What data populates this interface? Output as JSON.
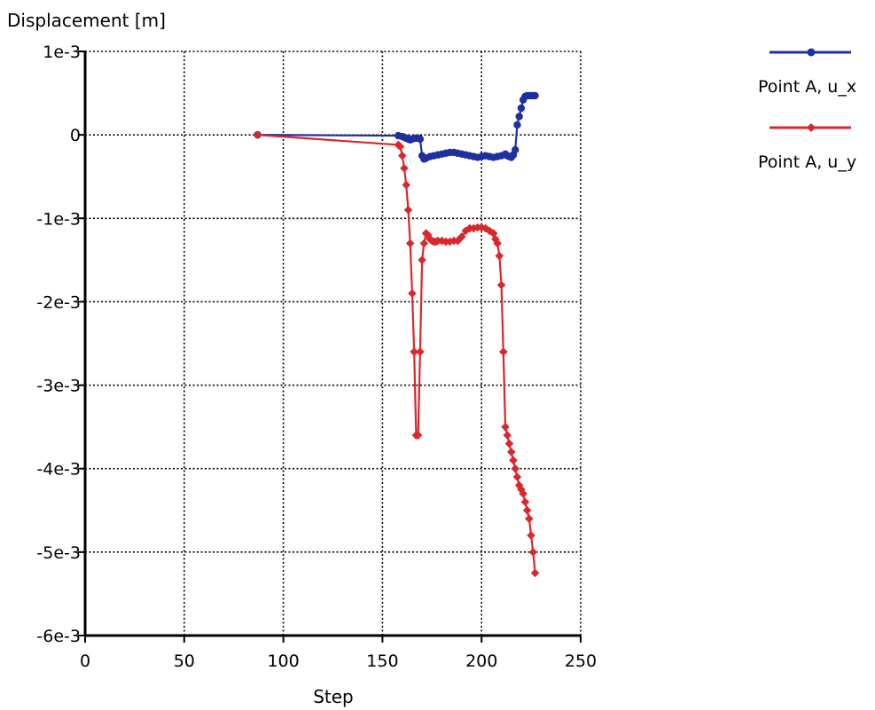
{
  "chart_data": {
    "type": "line",
    "title": "",
    "xlabel": "Step",
    "ylabel": "Displacement [m]",
    "xlim": [
      0,
      250
    ],
    "ylim": [
      -0.006,
      0.001
    ],
    "x_ticks": [
      0,
      50,
      100,
      150,
      200,
      250
    ],
    "x_tick_labels": [
      "0",
      "50",
      "100",
      "150",
      "200",
      "250"
    ],
    "y_ticks": [
      0.001,
      0,
      -0.001,
      -0.002,
      -0.003,
      -0.004,
      -0.005,
      -0.006
    ],
    "y_tick_labels": [
      "1e-3",
      "0",
      "-1e-3",
      "-2e-3",
      "-3e-3",
      "-4e-3",
      "-5e-3",
      "-6e-3"
    ],
    "grid": true,
    "legend_position": "top-right",
    "series": [
      {
        "name": "Point A, u_x",
        "color": "#1f2fa0",
        "marker": "circle",
        "x": [
          87,
          158,
          160,
          161,
          162,
          163,
          164,
          165,
          166,
          167,
          168,
          169,
          170,
          171,
          172,
          174,
          176,
          178,
          180,
          182,
          184,
          186,
          188,
          190,
          192,
          194,
          196,
          198,
          200,
          202,
          204,
          206,
          208,
          210,
          212,
          213,
          214,
          215,
          216,
          217,
          218,
          219,
          220,
          221,
          222,
          223,
          224,
          225,
          226,
          227
        ],
        "y": [
          0.0,
          -1e-05,
          -2e-05,
          -3e-05,
          -4e-05,
          -5e-05,
          -6e-05,
          -5e-05,
          -4e-05,
          -4e-05,
          -4e-05,
          -5e-05,
          -0.00025,
          -0.00029,
          -0.00028,
          -0.00026,
          -0.00025,
          -0.00024,
          -0.00023,
          -0.00022,
          -0.00021,
          -0.00021,
          -0.00022,
          -0.00023,
          -0.00024,
          -0.00025,
          -0.00026,
          -0.00027,
          -0.00026,
          -0.00025,
          -0.00026,
          -0.00027,
          -0.00026,
          -0.00025,
          -0.00023,
          -0.00025,
          -0.00026,
          -0.00027,
          -0.00024,
          -0.00018,
          0.00012,
          0.00022,
          0.00032,
          0.00042,
          0.00046,
          0.00047,
          0.00047,
          0.00047,
          0.00047,
          0.00047
        ]
      },
      {
        "name": "Point A, u_y",
        "color": "#d8282e",
        "marker": "diamond",
        "x": [
          87,
          158,
          159,
          160,
          161,
          162,
          163,
          164,
          165,
          166,
          167,
          168,
          169,
          170,
          171,
          172,
          173,
          174,
          175,
          176,
          177,
          178,
          180,
          182,
          184,
          186,
          188,
          190,
          192,
          194,
          196,
          198,
          200,
          202,
          204,
          206,
          207,
          208,
          209,
          210,
          211,
          212,
          213,
          214,
          215,
          216,
          217,
          218,
          219,
          220,
          221,
          222,
          223,
          224,
          225,
          226,
          227
        ],
        "y": [
          0.0,
          -0.00012,
          -0.00014,
          -0.00025,
          -0.0004,
          -0.0006,
          -0.0009,
          -0.0013,
          -0.0019,
          -0.0026,
          -0.0036,
          -0.0036,
          -0.0026,
          -0.0015,
          -0.0013,
          -0.00118,
          -0.0012,
          -0.00125,
          -0.00127,
          -0.00128,
          -0.00128,
          -0.00127,
          -0.00127,
          -0.00128,
          -0.00128,
          -0.00127,
          -0.00127,
          -0.00122,
          -0.00115,
          -0.00112,
          -0.00112,
          -0.00111,
          -0.00111,
          -0.00112,
          -0.00115,
          -0.00118,
          -0.00125,
          -0.0013,
          -0.00145,
          -0.0018,
          -0.0026,
          -0.0035,
          -0.0036,
          -0.0037,
          -0.0038,
          -0.0039,
          -0.004,
          -0.0041,
          -0.0042,
          -0.00425,
          -0.0043,
          -0.0044,
          -0.0045,
          -0.0046,
          -0.0048,
          -0.005,
          -0.00525
        ]
      }
    ]
  }
}
